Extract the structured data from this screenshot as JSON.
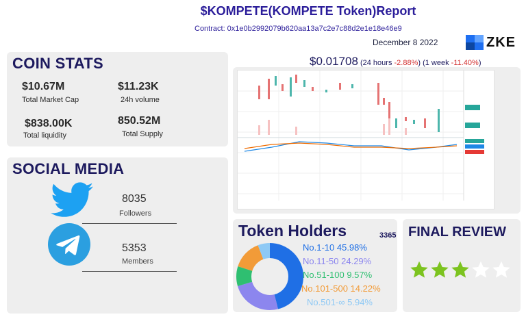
{
  "header": {
    "title": "$KOMPETE(KOMPETE Token)Report",
    "contract": "Contract: 0x1e0b2992079b620aa13a7c2e7c88d2e1e18e46e9",
    "date": "December 8 2022",
    "logo_text": "ZKE"
  },
  "coin_stats": {
    "heading": "COIN STATS",
    "items": [
      {
        "value": "$10.67M",
        "label": "Total Market Cap"
      },
      {
        "value": "$11.23K",
        "label": "24h volume"
      },
      {
        "value": "$838.00K",
        "label": "Total liquidity"
      },
      {
        "value": "850.52M",
        "label": "Total Supply"
      }
    ]
  },
  "social_media": {
    "heading": "SOCIAL MEDIA",
    "twitter": {
      "count": "8035",
      "label": "Followers"
    },
    "telegram": {
      "count": "5353",
      "label": "Members"
    }
  },
  "price": {
    "value": "$0.01708",
    "day_prefix": "(24 hours ",
    "day_change": "-2.88%",
    "week_prefix": ") (1 week ",
    "week_change": "-11.40%",
    "suffix": ")"
  },
  "token_holders": {
    "heading": "Token Holders",
    "total": "3365",
    "tiers": [
      {
        "label": "No.1-10  45.98%",
        "percent": 45.98,
        "color": "#1f6fe5"
      },
      {
        "label": "No.11-50 24.29%",
        "percent": 24.29,
        "color": "#8c86ee"
      },
      {
        "label": "No.51-100 9.57%",
        "percent": 9.57,
        "color": "#2fbf71"
      },
      {
        "label": "No.101-500 14.22%",
        "percent": 14.22,
        "color": "#f29b38"
      },
      {
        "label": "No.501-∞ 5.94%",
        "percent": 5.94,
        "color": "#8ec9f5"
      }
    ]
  },
  "final_review": {
    "heading": "FINAL REVIEW",
    "rating": 3,
    "max_rating": 5,
    "filled_color": "#7cc31f",
    "empty_color": "#ffffff"
  }
}
